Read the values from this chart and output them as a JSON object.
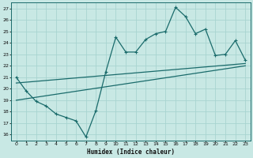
{
  "xlabel": "Humidex (Indice chaleur)",
  "bg_color": "#c8e8e4",
  "grid_color": "#a8d4d0",
  "line_color": "#1a6b6b",
  "spine_color": "#1a6b6b",
  "xlim": [
    -0.5,
    23.5
  ],
  "ylim": [
    15.5,
    27.5
  ],
  "xticks": [
    0,
    1,
    2,
    3,
    4,
    5,
    6,
    7,
    8,
    9,
    10,
    11,
    12,
    13,
    14,
    15,
    16,
    17,
    18,
    19,
    20,
    21,
    22,
    23
  ],
  "yticks": [
    16,
    17,
    18,
    19,
    20,
    21,
    22,
    23,
    24,
    25,
    26,
    27
  ],
  "line1_x": [
    0,
    1,
    2,
    3,
    4,
    5,
    6,
    7,
    8,
    9,
    10,
    11,
    12,
    13,
    14,
    15,
    16,
    17,
    18,
    19,
    20,
    21,
    22,
    23
  ],
  "line1_y": [
    21.0,
    19.8,
    18.9,
    18.5,
    17.8,
    17.5,
    17.2,
    15.8,
    18.1,
    21.5,
    24.5,
    23.2,
    23.2,
    24.3,
    24.8,
    25.0,
    27.1,
    26.3,
    24.8,
    25.2,
    22.9,
    23.0,
    24.2,
    22.5
  ],
  "line2_x": [
    0,
    23
  ],
  "line2_y": [
    20.5,
    22.2
  ],
  "line3_x": [
    0,
    23
  ],
  "line3_y": [
    19.0,
    22.0
  ]
}
